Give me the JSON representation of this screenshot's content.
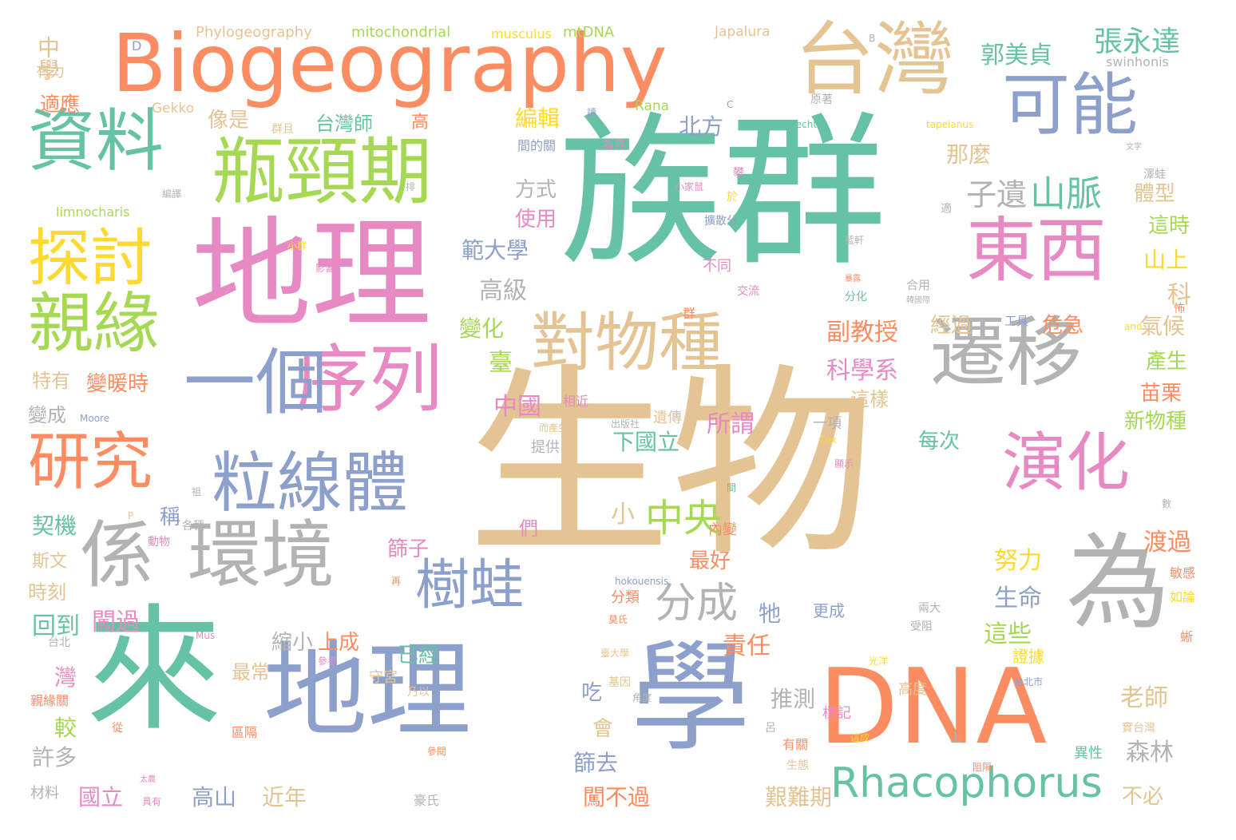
{
  "colors": {
    "green": "#66c2a5",
    "orange": "#fc8d62",
    "blue": "#8da0cb",
    "pink": "#e78ac3",
    "lime": "#a6d854",
    "yellow": "#ffd92f",
    "tan": "#e5c494",
    "gray": "#b3b3b3"
  },
  "words": [
    {
      "text": "生物"
    },
    {
      "text": "族群"
    },
    {
      "text": "地理"
    },
    {
      "text": "來"
    },
    {
      "text": "地理"
    },
    {
      "text": "學"
    },
    {
      "text": "Biogeography"
    },
    {
      "text": "DNA"
    },
    {
      "text": "瓶頸期"
    },
    {
      "text": "為"
    },
    {
      "text": "台灣"
    },
    {
      "text": "環境"
    },
    {
      "text": "係"
    },
    {
      "text": "遷移"
    },
    {
      "text": "序列"
    },
    {
      "text": "一個"
    },
    {
      "text": "東西"
    },
    {
      "text": "可能"
    },
    {
      "text": "資料"
    },
    {
      "text": "對物種"
    },
    {
      "text": "粒線體"
    },
    {
      "text": "演化"
    },
    {
      "text": "親緣"
    },
    {
      "text": "探討"
    },
    {
      "text": "研究"
    },
    {
      "text": "樹蛙"
    },
    {
      "text": "Rhacophorus"
    },
    {
      "text": "分成"
    },
    {
      "text": "中央"
    },
    {
      "text": "山脈"
    },
    {
      "text": "子遺"
    },
    {
      "text": "張永達"
    },
    {
      "text": "郭美貞"
    },
    {
      "text": "Phylogeography"
    },
    {
      "text": "mitochondrial"
    },
    {
      "text": "musculus"
    },
    {
      "text": "mtDNA"
    },
    {
      "text": "Japalura"
    },
    {
      "text": "swinhonis"
    },
    {
      "text": "moltrechti"
    },
    {
      "text": "tapeianus"
    },
    {
      "text": "limnocharis"
    },
    {
      "text": "Gekko"
    },
    {
      "text": "Rana"
    },
    {
      "text": "Moore"
    },
    {
      "text": "hokouensis"
    },
    {
      "text": "Mus"
    },
    {
      "text": "Cox"
    },
    {
      "text": "and"
    },
    {
      "text": "中學"
    },
    {
      "text": "有力"
    },
    {
      "text": "適應"
    },
    {
      "text": "像是"
    },
    {
      "text": "台灣師"
    },
    {
      "text": "高"
    },
    {
      "text": "編輯"
    },
    {
      "text": "北方"
    },
    {
      "text": "那麼"
    },
    {
      "text": "體型"
    },
    {
      "text": "這時"
    },
    {
      "text": "山上"
    },
    {
      "text": "科"
    },
    {
      "text": "氣候"
    },
    {
      "text": "方式"
    },
    {
      "text": "使用"
    },
    {
      "text": "範大學"
    },
    {
      "text": "高級"
    },
    {
      "text": "變化"
    },
    {
      "text": "臺"
    },
    {
      "text": "副教授"
    },
    {
      "text": "經過"
    },
    {
      "text": "危急"
    },
    {
      "text": "工具"
    },
    {
      "text": "產生"
    },
    {
      "text": "苗栗"
    },
    {
      "text": "新物種"
    },
    {
      "text": "科學系"
    },
    {
      "text": "這樣"
    },
    {
      "text": "所謂"
    },
    {
      "text": "中國"
    },
    {
      "text": "下國立"
    },
    {
      "text": "每次"
    },
    {
      "text": "特有"
    },
    {
      "text": "變暖時"
    },
    {
      "text": "變成"
    },
    {
      "text": "契機"
    },
    {
      "text": "斯文"
    },
    {
      "text": "時刻"
    },
    {
      "text": "回到"
    },
    {
      "text": "闖過"
    },
    {
      "text": "小"
    },
    {
      "text": "稱"
    },
    {
      "text": "們"
    },
    {
      "text": "篩子"
    },
    {
      "text": "最好"
    },
    {
      "text": "渡過"
    },
    {
      "text": "努力"
    },
    {
      "text": "生命"
    },
    {
      "text": "這些"
    },
    {
      "text": "敏感"
    },
    {
      "text": "如論"
    },
    {
      "text": "牠"
    },
    {
      "text": "責任"
    },
    {
      "text": "縮小"
    },
    {
      "text": "上成"
    },
    {
      "text": "已經"
    },
    {
      "text": "最常"
    },
    {
      "text": "吃"
    },
    {
      "text": "會"
    },
    {
      "text": "推測"
    },
    {
      "text": "灣"
    },
    {
      "text": "較"
    },
    {
      "text": "許多"
    },
    {
      "text": "篩去"
    },
    {
      "text": "老師"
    },
    {
      "text": "森林"
    },
    {
      "text": "不必"
    },
    {
      "text": "高山"
    },
    {
      "text": "近年"
    },
    {
      "text": "闖不過"
    },
    {
      "text": "艱難期"
    },
    {
      "text": "國立"
    },
    {
      "text": "更成"
    },
    {
      "text": "證據"
    },
    {
      "text": "異性"
    },
    {
      "text": "高度"
    },
    {
      "text": "一項"
    },
    {
      "text": "內變"
    },
    {
      "text": "分類"
    },
    {
      "text": "提供"
    },
    {
      "text": "相近"
    },
    {
      "text": "遺傳"
    },
    {
      "text": "材料"
    },
    {
      "text": "親緣關"
    },
    {
      "text": "守宮"
    },
    {
      "text": "乃以"
    },
    {
      "text": "標記"
    },
    {
      "text": "有關"
    },
    {
      "text": "間的關"
    },
    {
      "text": "群且"
    },
    {
      "text": "原著"
    },
    {
      "text": "為界"
    },
    {
      "text": "於"
    },
    {
      "text": "攀"
    },
    {
      "text": "小家鼠"
    },
    {
      "text": "澤蛙"
    },
    {
      "text": "適"
    },
    {
      "text": "不同"
    },
    {
      "text": "交流"
    },
    {
      "text": "群"
    },
    {
      "text": "合用"
    },
    {
      "text": "分化"
    },
    {
      "text": "各種"
    },
    {
      "text": "動物"
    },
    {
      "text": "從"
    },
    {
      "text": "台北"
    },
    {
      "text": "區隔"
    },
    {
      "text": "豪氏"
    },
    {
      "text": "具有"
    },
    {
      "text": "基因"
    },
    {
      "text": "角度"
    },
    {
      "text": "光洋"
    },
    {
      "text": "兩大"
    },
    {
      "text": "受阻"
    },
    {
      "text": "台北市"
    },
    {
      "text": "實台灣"
    },
    {
      "text": "生態"
    },
    {
      "text": "阻隔"
    },
    {
      "text": "影響"
    },
    {
      "text": "小群"
    },
    {
      "text": "再"
    },
    {
      "text": "蜥"
    },
    {
      "text": "參閱"
    },
    {
      "text": "參考"
    },
    {
      "text": "這成"
    },
    {
      "text": "顯示"
    },
    {
      "text": "而產生"
    },
    {
      "text": "出版社"
    },
    {
      "text": "擴散分"
    },
    {
      "text": "藍軒"
    },
    {
      "text": "韓國際"
    },
    {
      "text": "文字"
    },
    {
      "text": "數"
    },
    {
      "text": "間"
    },
    {
      "text": "讀"
    },
    {
      "text": "暴露"
    },
    {
      "text": "呂"
    },
    {
      "text": "上"
    },
    {
      "text": "太農"
    },
    {
      "text": "臺大學"
    },
    {
      "text": "編譯"
    },
    {
      "text": "祖"
    },
    {
      "text": "排"
    },
    {
      "text": "怖"
    },
    {
      "text": "B"
    },
    {
      "text": "C"
    },
    {
      "text": "D"
    },
    {
      "text": "P"
    },
    {
      "text": "莫氏"
    }
  ]
}
